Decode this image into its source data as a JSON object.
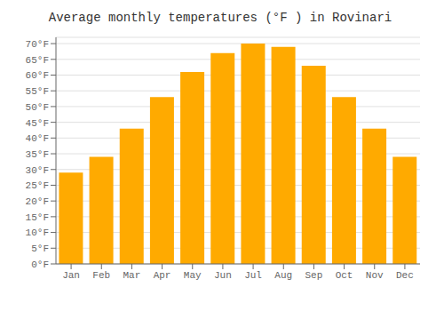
{
  "chart_data": {
    "type": "bar",
    "title": "Average monthly temperatures (°F ) in Rovinari",
    "categories": [
      "Jan",
      "Feb",
      "Mar",
      "Apr",
      "May",
      "Jun",
      "Jul",
      "Aug",
      "Sep",
      "Oct",
      "Nov",
      "Dec"
    ],
    "values": [
      29,
      34,
      43,
      53,
      61,
      67,
      70,
      69,
      63,
      53,
      43,
      34
    ],
    "color": "#FFAA00",
    "ylim": [
      0,
      72
    ],
    "yticks": [
      {
        "value": 0,
        "label": "0°F"
      },
      {
        "value": 5,
        "label": "5°F"
      },
      {
        "value": 10,
        "label": "10°F"
      },
      {
        "value": 15,
        "label": "15°F"
      },
      {
        "value": 20,
        "label": "20°F"
      },
      {
        "value": 25,
        "label": "25°F"
      },
      {
        "value": 30,
        "label": "30°F"
      },
      {
        "value": 35,
        "label": "35°F"
      },
      {
        "value": 40,
        "label": "40°F"
      },
      {
        "value": 45,
        "label": "45°F"
      },
      {
        "value": 50,
        "label": "50°F"
      },
      {
        "value": 55,
        "label": "55°F"
      },
      {
        "value": 60,
        "label": "60°F"
      },
      {
        "value": 65,
        "label": "65°F"
      },
      {
        "value": 70,
        "label": "70°F"
      }
    ],
    "grid": true
  }
}
